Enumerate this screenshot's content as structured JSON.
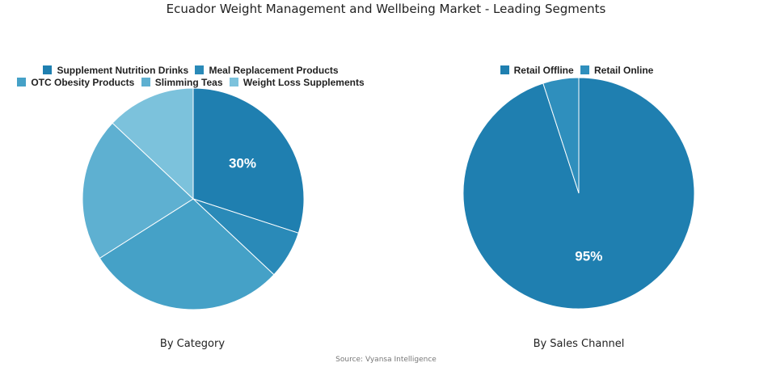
{
  "title": "Ecuador Weight Management and Wellbeing Market - Leading Segments",
  "source": "Source: Vyansa Intelligence",
  "chart_data": [
    {
      "type": "pie",
      "subtitle": "By Category",
      "legend_position": "top",
      "slices": [
        {
          "label": "Supplement Nutrition Drinks",
          "value": 30,
          "color": "#1f7fb0",
          "show_label": true
        },
        {
          "label": "Meal Replacement Products",
          "value": 7,
          "color": "#2a8ab8",
          "show_label": false
        },
        {
          "label": "OTC Obesity Products",
          "value": 29,
          "color": "#45a1c7",
          "show_label": false
        },
        {
          "label": "Slimming Teas",
          "value": 21,
          "color": "#5eb0d1",
          "show_label": false
        },
        {
          "label": "Weight Loss Supplements",
          "value": 13,
          "color": "#7cc2dc",
          "show_label": false
        }
      ],
      "data_labels": [
        "30%"
      ]
    },
    {
      "type": "pie",
      "subtitle": "By Sales Channel",
      "legend_position": "top",
      "slices": [
        {
          "label": "Retail Offline",
          "value": 95,
          "color": "#1f7fb0",
          "show_label": true
        },
        {
          "label": "Retail Online",
          "value": 5,
          "color": "#2f8fbd",
          "show_label": false
        }
      ],
      "data_labels": [
        "95%"
      ]
    }
  ]
}
